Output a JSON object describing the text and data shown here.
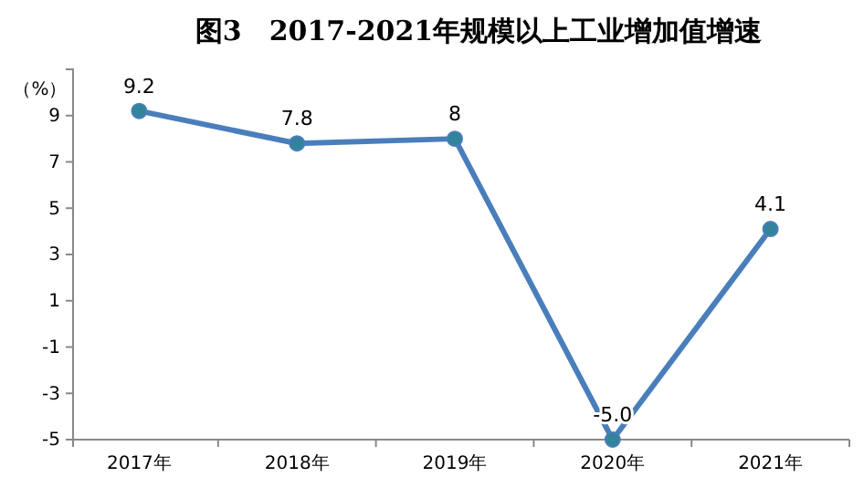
{
  "chart_data": {
    "type": "line",
    "title": "图3　2017-2021年规模以上工业增加值增速",
    "ylabel": "（%）",
    "categories": [
      "2017年",
      "2018年",
      "2019年",
      "2020年",
      "2021年"
    ],
    "series": [
      {
        "color": "#4a7ebb",
        "values": [
          9.2,
          7.8,
          8,
          -5.0,
          4.1
        ],
        "value_labels": [
          "9.2",
          "7.8",
          "8",
          "-5.0",
          "4.1"
        ]
      }
    ],
    "ylim": [
      -5,
      11
    ],
    "yticks": [
      -5,
      -3,
      -1,
      1,
      3,
      5,
      7,
      9
    ],
    "grid": false,
    "marker": "circle",
    "line_style": "solid"
  }
}
